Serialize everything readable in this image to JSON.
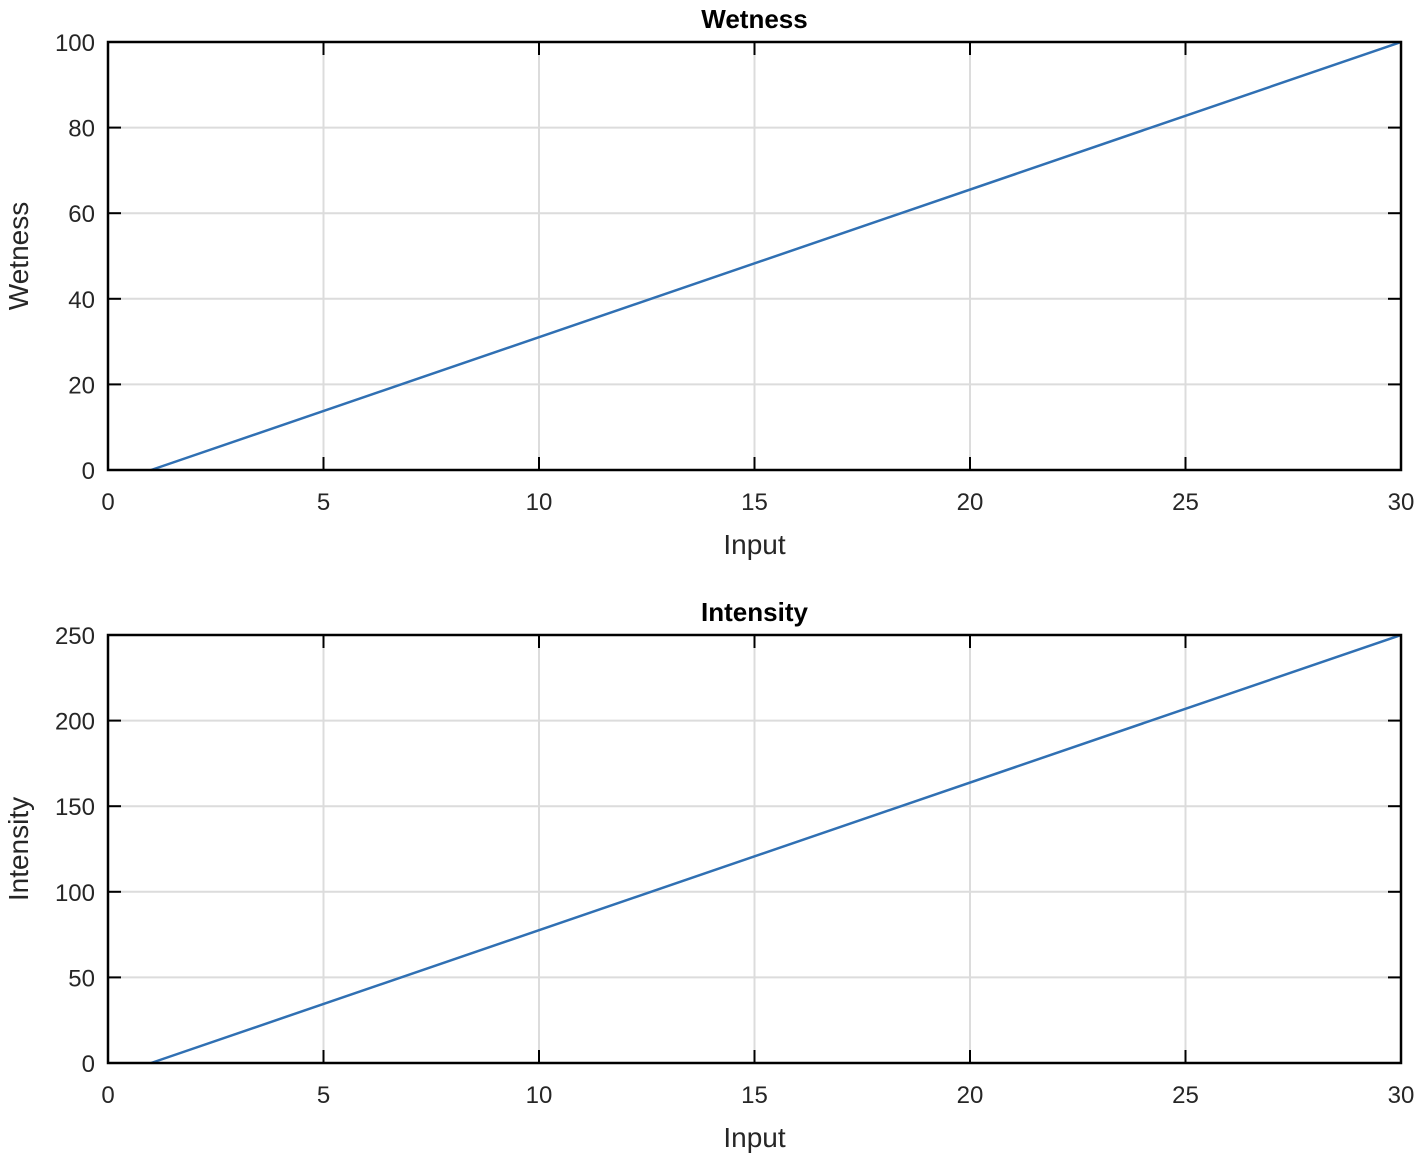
{
  "chart_data": [
    {
      "type": "line",
      "title": "Wetness",
      "xlabel": "Input",
      "ylabel": "Wetness",
      "xlim": [
        0,
        30
      ],
      "ylim": [
        0,
        100
      ],
      "xticks": [
        0,
        5,
        10,
        15,
        20,
        25,
        30
      ],
      "yticks": [
        0,
        20,
        40,
        60,
        80,
        100
      ],
      "grid": true,
      "series": [
        {
          "name": "Wetness",
          "color": "#3070b3",
          "x": [
            1,
            30
          ],
          "y": [
            0,
            100
          ]
        }
      ]
    },
    {
      "type": "line",
      "title": "Intensity",
      "xlabel": "Input",
      "ylabel": "Intensity",
      "xlim": [
        0,
        30
      ],
      "ylim": [
        0,
        250
      ],
      "xticks": [
        0,
        5,
        10,
        15,
        20,
        25,
        30
      ],
      "yticks": [
        0,
        50,
        100,
        150,
        200,
        250
      ],
      "grid": true,
      "series": [
        {
          "name": "Intensity",
          "color": "#3070b3",
          "x": [
            1,
            30
          ],
          "y": [
            0,
            250
          ]
        }
      ]
    }
  ]
}
